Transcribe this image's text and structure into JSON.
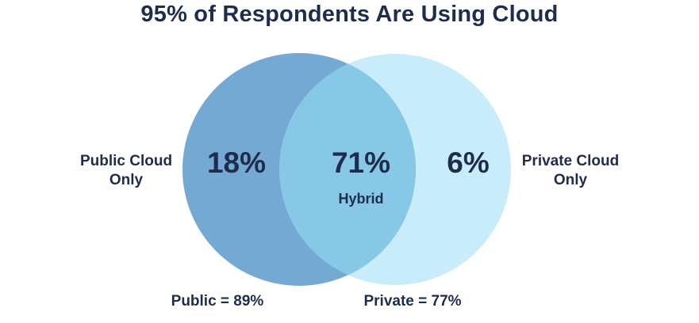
{
  "title": "95% of Respondents Are Using Cloud",
  "colors": {
    "public_circle": "#74a9d4",
    "private_circle": "#c9ecfa",
    "overlap": "#87c8e6",
    "text": "#1f2d4d"
  },
  "sets": {
    "public": {
      "outside_label_line1": "Public Cloud",
      "outside_label_line2": "Only",
      "only_value": "18%",
      "total_label": "Public = 89%"
    },
    "private": {
      "outside_label_line1": "Private Cloud",
      "outside_label_line2": "Only",
      "only_value": "6%",
      "total_label": "Private = 77%"
    },
    "overlap": {
      "value": "71%",
      "label": "Hybrid"
    }
  }
}
